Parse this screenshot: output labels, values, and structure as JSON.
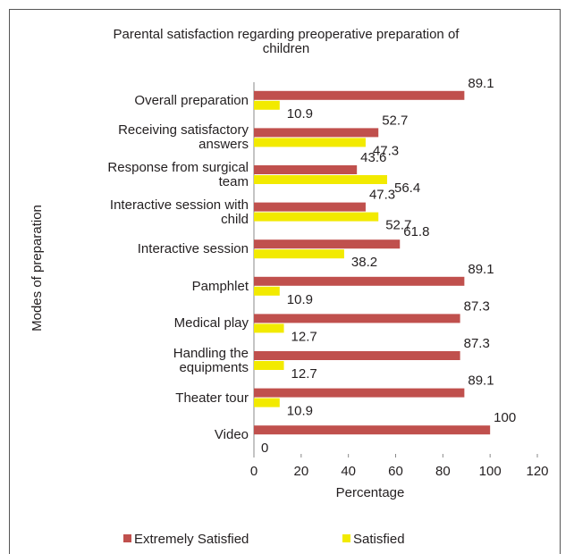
{
  "chart_data": {
    "type": "hbar",
    "title": "Parental satisfaction regarding preoperative preparation of children",
    "x_label": "Percentage",
    "y_label": "Modes of preparation",
    "categories": [
      "Overall preparation",
      "Receiving satisfactory answers",
      "Response from surgical team",
      "Interactive session with child",
      "Interactive session",
      "Pamphlet",
      "Medical play",
      "Handling the equipments",
      "Theater tour",
      "Video"
    ],
    "series": [
      {
        "name": "Extremely Satisfied",
        "color": "#c0504d",
        "values": [
          89.1,
          52.7,
          43.6,
          47.3,
          61.8,
          89.1,
          87.3,
          87.3,
          89.1,
          100
        ]
      },
      {
        "name": "Satisfied",
        "color": "#f2ea00",
        "values": [
          10.9,
          47.3,
          56.4,
          52.7,
          38.2,
          10.9,
          12.7,
          12.7,
          10.9,
          0
        ]
      }
    ],
    "xlim": [
      0,
      120
    ],
    "xticks": [
      0,
      20,
      40,
      60,
      80,
      100,
      120
    ],
    "legend": "bottom"
  }
}
